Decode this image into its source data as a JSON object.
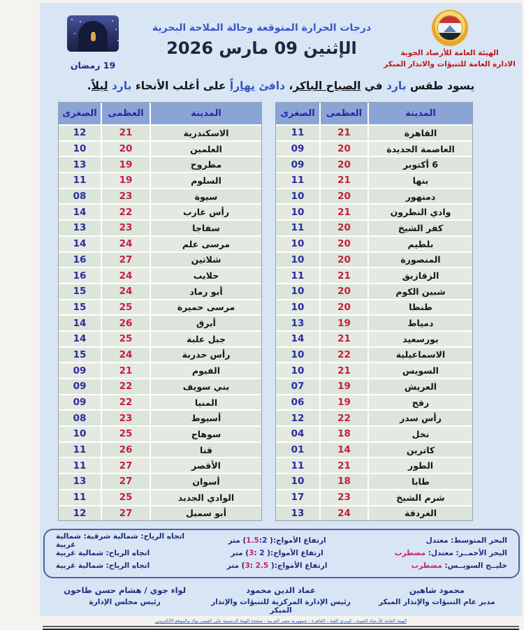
{
  "header": {
    "title": "درجات الحرارة المتوقعة وحالة الملاحة البحرية",
    "date": "الإثنين 09 مارس 2026",
    "ramadan_date": "19 رمضان",
    "org_name": "الهيئة العامة للأرصاد الجوية",
    "org_dept": "الادارة العامة للتنبؤات والانذار المبكر",
    "logo_colors": {
      "ring": "#e8a826",
      "red": "#c23535",
      "white": "#eef4fa",
      "black": "#21242a",
      "mountain": "#5b87b8"
    }
  },
  "summary": {
    "segments": [
      {
        "text": "يسود طقس ",
        "style": "plain"
      },
      {
        "text": "بارد",
        "style": "blue"
      },
      {
        "text": " في ",
        "style": "plain"
      },
      {
        "text": "الصباح الباكر",
        "style": "underline"
      },
      {
        "text": "، ",
        "style": "plain"
      },
      {
        "text": "دافئ",
        "style": "blue"
      },
      {
        "text": " ",
        "style": "plain"
      },
      {
        "text": "نهاراً",
        "style": "blue-underline"
      },
      {
        "text": " على أغلب الأنحاء ",
        "style": "plain"
      },
      {
        "text": "بارد",
        "style": "blue"
      },
      {
        "text": " ",
        "style": "plain"
      },
      {
        "text": "ليلاً",
        "style": "underline"
      },
      {
        "text": ".",
        "style": "plain"
      }
    ]
  },
  "table_headers": {
    "city": "المدينة",
    "max": "العظمى",
    "min": "الصغرى"
  },
  "colors": {
    "max_temp": "#c32040",
    "min_temp": "#2b2b9e",
    "header_bg": "#8ba4d6",
    "doc_bg": "#d8e5f4"
  },
  "tables": {
    "right": {
      "rows": [
        {
          "city": "القاهرة",
          "max": "21",
          "min": "11"
        },
        {
          "city": "العاصمة الجديدة",
          "max": "20",
          "min": "09"
        },
        {
          "city": "6 أكتوبر",
          "max": "20",
          "min": "09"
        },
        {
          "city": "بنها",
          "max": "21",
          "min": "11"
        },
        {
          "city": "دمنهور",
          "max": "20",
          "min": "10"
        },
        {
          "city": "وادي النطرون",
          "max": "21",
          "min": "10"
        },
        {
          "city": "كفر الشيخ",
          "max": "20",
          "min": "11"
        },
        {
          "city": "بلطيم",
          "max": "20",
          "min": "10"
        },
        {
          "city": "المنصورة",
          "max": "20",
          "min": "10"
        },
        {
          "city": "الزقازيق",
          "max": "21",
          "min": "11"
        },
        {
          "city": "شبين الكوم",
          "max": "20",
          "min": "10"
        },
        {
          "city": "طنطا",
          "max": "20",
          "min": "10"
        },
        {
          "city": "دمياط",
          "max": "19",
          "min": "13"
        },
        {
          "city": "بورسعيد",
          "max": "21",
          "min": "14"
        },
        {
          "city": "الاسماعيلية",
          "max": "22",
          "min": "10"
        },
        {
          "city": "السويس",
          "max": "21",
          "min": "10"
        },
        {
          "city": "العريش",
          "max": "19",
          "min": "07"
        },
        {
          "city": "رفح",
          "max": "19",
          "min": "06"
        },
        {
          "city": "رأس سدر",
          "max": "22",
          "min": "12"
        },
        {
          "city": "نخل",
          "max": "18",
          "min": "04"
        },
        {
          "city": "كاترين",
          "max": "14",
          "min": "01"
        },
        {
          "city": "الطور",
          "max": "21",
          "min": "11"
        },
        {
          "city": "طابا",
          "max": "18",
          "min": "10"
        },
        {
          "city": "شرم الشيخ",
          "max": "23",
          "min": "17"
        },
        {
          "city": "الغردقة",
          "max": "24",
          "min": "13"
        }
      ]
    },
    "left": {
      "rows": [
        {
          "city": "الاسكندرية",
          "max": "21",
          "min": "12"
        },
        {
          "city": "العلمين",
          "max": "20",
          "min": "10"
        },
        {
          "city": "مطروح",
          "max": "19",
          "min": "13"
        },
        {
          "city": "السلوم",
          "max": "19",
          "min": "11"
        },
        {
          "city": "سيوة",
          "max": "23",
          "min": "08"
        },
        {
          "city": "رأس غارب",
          "max": "22",
          "min": "14"
        },
        {
          "city": "سفاجا",
          "max": "23",
          "min": "13"
        },
        {
          "city": "مرسى علم",
          "max": "24",
          "min": "14"
        },
        {
          "city": "شلاتين",
          "max": "27",
          "min": "16"
        },
        {
          "city": "حلايب",
          "max": "24",
          "min": "16"
        },
        {
          "city": "أبو رماد",
          "max": "24",
          "min": "15"
        },
        {
          "city": "مرسى حميرة",
          "max": "25",
          "min": "15"
        },
        {
          "city": "أبرق",
          "max": "26",
          "min": "14"
        },
        {
          "city": "جبل علبة",
          "max": "25",
          "min": "14"
        },
        {
          "city": "رأس حدربة",
          "max": "24",
          "min": "15"
        },
        {
          "city": "الفيوم",
          "max": "21",
          "min": "09"
        },
        {
          "city": "بني سويف",
          "max": "22",
          "min": "09"
        },
        {
          "city": "المنيا",
          "max": "22",
          "min": "09"
        },
        {
          "city": "أسيوط",
          "max": "23",
          "min": "08"
        },
        {
          "city": "سوهاج",
          "max": "25",
          "min": "10"
        },
        {
          "city": "قنا",
          "max": "26",
          "min": "11"
        },
        {
          "city": "الأقصر",
          "max": "27",
          "min": "11"
        },
        {
          "city": "أسوان",
          "max": "27",
          "min": "13"
        },
        {
          "city": "الوادي الجديد",
          "max": "25",
          "min": "11"
        },
        {
          "city": "أبو سمبل",
          "max": "27",
          "min": "12"
        }
      ]
    }
  },
  "marine": {
    "rows": [
      {
        "sea": [
          {
            "t": "البحر المتوسط: معتدل",
            "s": "navy"
          }
        ],
        "waves": [
          {
            "t": "ارتفاع الأمواج:( ",
            "s": "navy"
          },
          {
            "t": "1.5",
            "s": "red"
          },
          {
            "t": ":",
            "s": "navy"
          },
          {
            "t": "2",
            "s": "blue"
          },
          {
            "t": ") متر",
            "s": "navy"
          }
        ],
        "wind": "اتجاه الرياح: شمالية شرقية: شمالية غربية"
      },
      {
        "sea": [
          {
            "t": "البحر الأحمــر: معتدل: ",
            "s": "navy"
          },
          {
            "t": "مضطرب",
            "s": "red"
          }
        ],
        "waves": [
          {
            "t": "ارتفاع الأمواج:( ",
            "s": "navy"
          },
          {
            "t": "2",
            "s": "blue"
          },
          {
            "t": " :",
            "s": "navy"
          },
          {
            "t": "3",
            "s": "red"
          },
          {
            "t": ") متر",
            "s": "navy"
          }
        ],
        "wind": "اتجاه الرياح: شمالية غربية"
      },
      {
        "sea": [
          {
            "t": "خليــج السويــس: ",
            "s": "navy"
          },
          {
            "t": "مضطرب",
            "s": "red"
          }
        ],
        "waves": [
          {
            "t": "ارتفاع الأمواج:( ",
            "s": "navy"
          },
          {
            "t": "2.5",
            "s": "red"
          },
          {
            "t": " :",
            "s": "navy"
          },
          {
            "t": "3",
            "s": "red"
          },
          {
            "t": ") متر",
            "s": "navy"
          }
        ],
        "wind": "اتجاه الرياح: شمالية غربية"
      }
    ]
  },
  "footer": {
    "columns": [
      {
        "name": "محمود شاهين",
        "title": "مدير عام التنبؤات والإنذار المبكر"
      },
      {
        "name": "عماد الدين محمود",
        "title": "رئيس الإدارة المركزية للتنبؤات والإنذار المبكر"
      },
      {
        "name": "لواء جوي / هشام حسن طاحون",
        "title": "رئيس مجلس الإدارة"
      }
    ],
    "contact_line": "الهيئة العامة للأرصاد الجوية - كوبري القبة - القاهرة - جمهورية مصر العربية - صفحة الهيئة الرسمية على الفيس بوك والموقع الالكتروني"
  }
}
